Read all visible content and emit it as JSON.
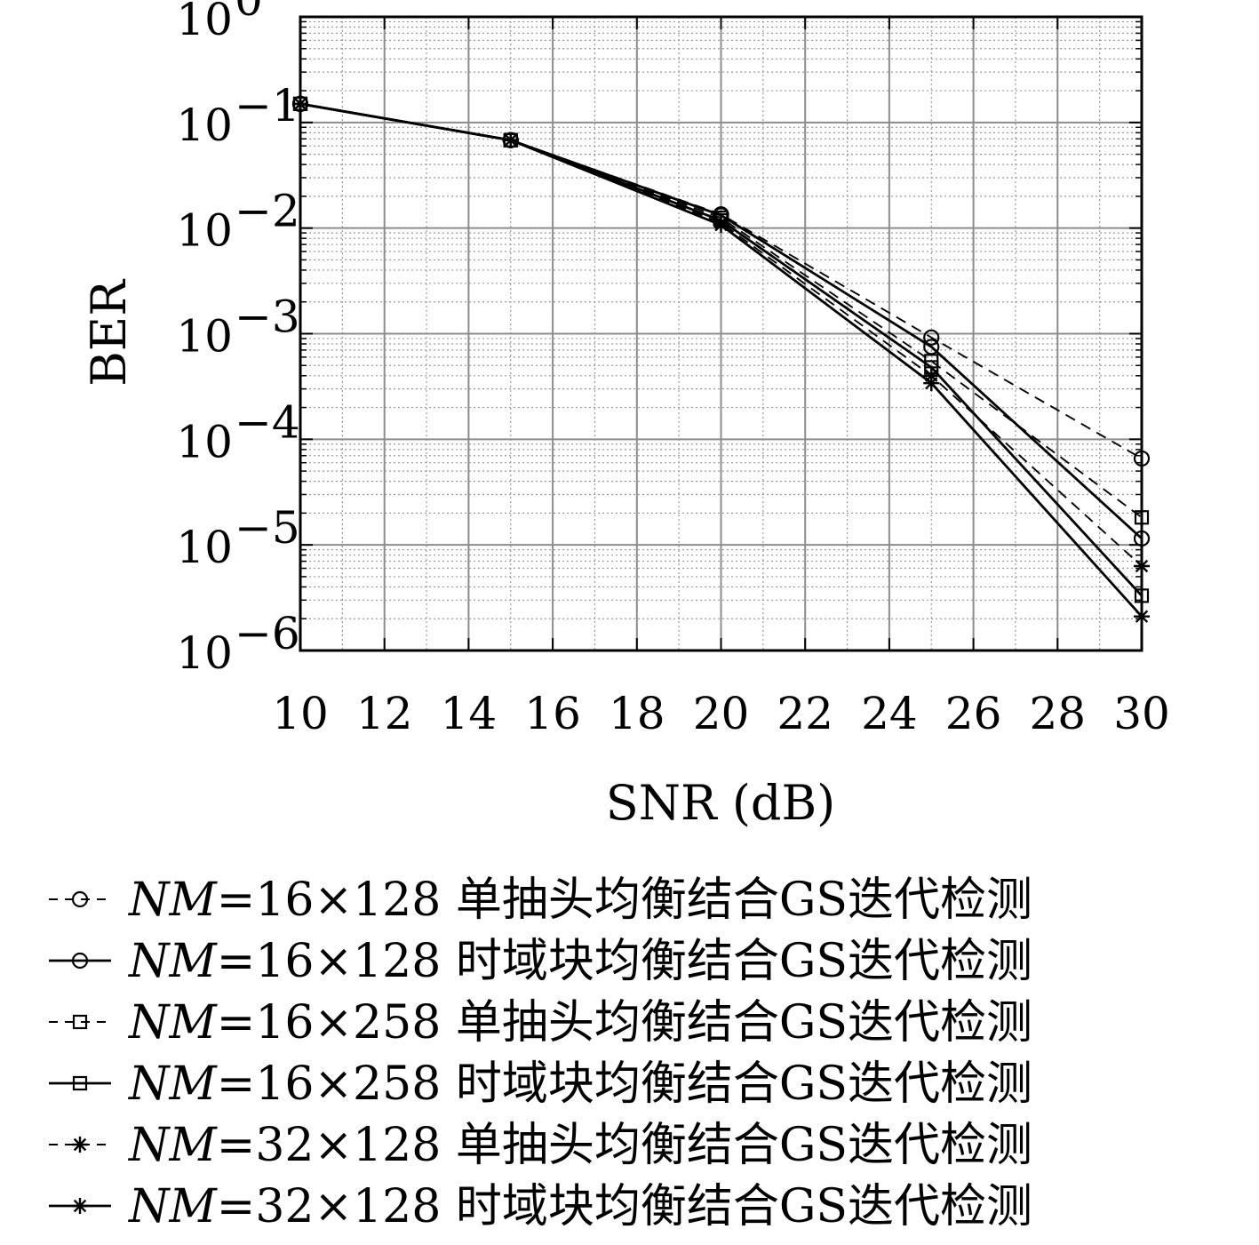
{
  "chart_data": {
    "type": "line",
    "xlabel": "SNR (dB)",
    "ylabel": "BER",
    "xlim": [
      10,
      30
    ],
    "ylim": [
      1e-06,
      1
    ],
    "yscale": "log",
    "grid": true,
    "legend_position": "bottom",
    "x_ticks": [
      10,
      12,
      14,
      16,
      18,
      20,
      22,
      24,
      26,
      28,
      30
    ],
    "x_tick_labels": [
      "10",
      "12",
      "14",
      "16",
      "18",
      "20",
      "22",
      "24",
      "26",
      "28",
      "30"
    ],
    "y_ticks": [
      {
        "value": 1.0,
        "base": "10",
        "exp": "0"
      },
      {
        "value": 0.1,
        "base": "10",
        "exp": "−1"
      },
      {
        "value": 0.01,
        "base": "10",
        "exp": "−2"
      },
      {
        "value": 0.001,
        "base": "10",
        "exp": "−3"
      },
      {
        "value": 0.0001,
        "base": "10",
        "exp": "−4"
      },
      {
        "value": 1e-05,
        "base": "10",
        "exp": "−5"
      },
      {
        "value": 1e-06,
        "base": "10",
        "exp": "−6"
      }
    ],
    "x": [
      10,
      15,
      20,
      25,
      30
    ],
    "series": [
      {
        "label_var": "NM",
        "label_rest": "=16×128 单抽头均衡结合GS迭代检测",
        "line": "dashed",
        "marker": "circle",
        "values": [
          0.15,
          0.068,
          0.0135,
          0.00092,
          6.58e-05
        ]
      },
      {
        "label_var": "NM",
        "label_rest": "=16×128 时域块均衡结合GS迭代检测",
        "line": "solid",
        "marker": "circle",
        "values": [
          0.15,
          0.068,
          0.0132,
          0.00075,
          1.15e-05
        ]
      },
      {
        "label_var": "NM",
        "label_rest": "=16×258 单抽头均衡结合GS迭代检测",
        "line": "dashed",
        "marker": "square",
        "values": [
          0.15,
          0.068,
          0.0125,
          0.00055,
          1.82e-05
        ]
      },
      {
        "label_var": "NM",
        "label_rest": "=16×258 时域块均衡结合GS迭代检测",
        "line": "solid",
        "marker": "square",
        "values": [
          0.15,
          0.068,
          0.0118,
          0.00048,
          3.3e-06
        ]
      },
      {
        "label_var": "NM",
        "label_rest": "=32×128 单抽头均衡结合GS迭代检测",
        "line": "dashed",
        "marker": "star",
        "values": [
          0.15,
          0.068,
          0.0112,
          0.0004,
          6.3e-06
        ]
      },
      {
        "label_var": "NM",
        "label_rest": "=32×128 时域块均衡结合GS迭代检测",
        "line": "solid",
        "marker": "star",
        "values": [
          0.15,
          0.068,
          0.0107,
          0.00034,
          2.1e-06
        ]
      }
    ]
  }
}
